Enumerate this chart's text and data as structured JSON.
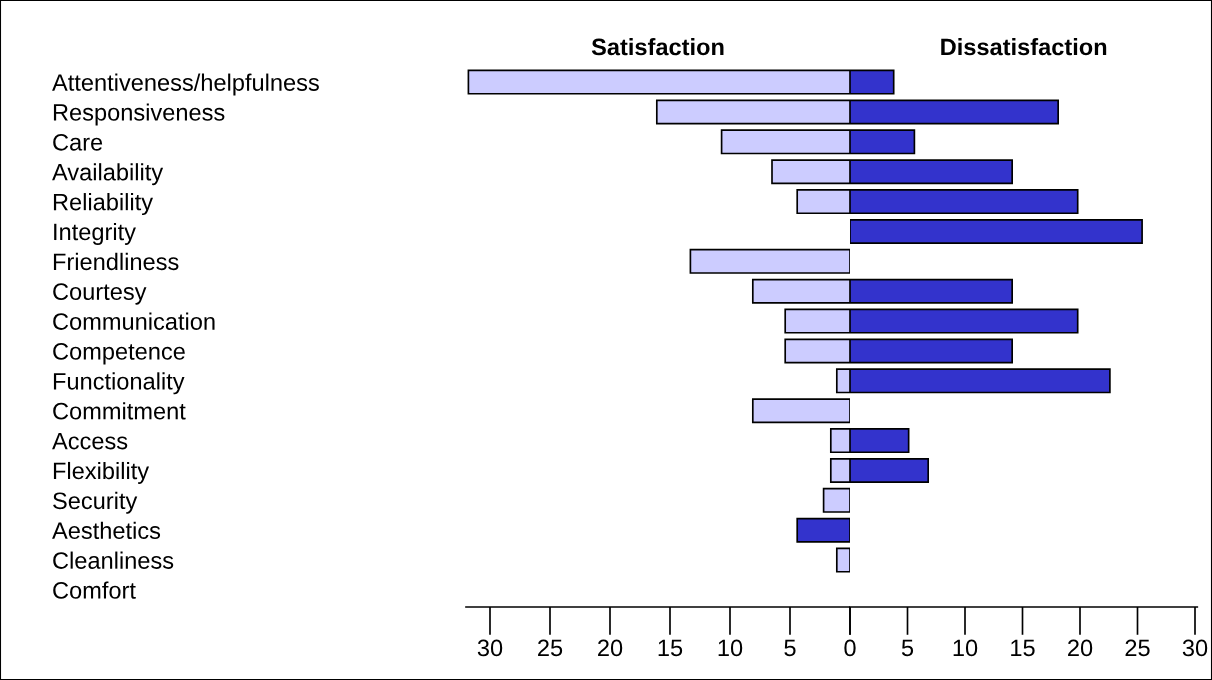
{
  "chart_data": [
    {
      "type": "bar",
      "orientation": "horizontal",
      "title": "Satisfaction",
      "categories": [
        "Attentiveness/helpfulness",
        "Responsiveness",
        "Care",
        "Availability",
        "Reliability",
        "Integrity",
        "Friendliness",
        "Courtesy",
        "Communication",
        "Competence",
        "Functionality",
        "Commitment",
        "Access",
        "Flexibility",
        "Security",
        "Aesthetics",
        "Cleanliness",
        "Comfort"
      ],
      "values": [
        31.8,
        16.1,
        10.7,
        6.5,
        4.4,
        null,
        13.3,
        8.1,
        5.4,
        5.4,
        1.1,
        8.1,
        1.6,
        1.6,
        2.2,
        4.4,
        1.1,
        null
      ],
      "colors": [
        "#ccccff",
        "#ccccff",
        "#ccccff",
        "#ccccff",
        "#ccccff",
        "#ccccff",
        "#ccccff",
        "#ccccff",
        "#ccccff",
        "#ccccff",
        "#ccccff",
        "#ccccff",
        "#ccccff",
        "#ccccff",
        "#ccccff",
        "#3333cc",
        "#ccccff",
        "#ccccff"
      ],
      "xlim": [
        32,
        0
      ],
      "xticks": [
        30,
        25,
        20,
        15,
        10,
        5,
        0
      ]
    },
    {
      "type": "bar",
      "orientation": "horizontal",
      "title": "Dissatisfaction",
      "tick_labels": "x",
      "categories": [
        null,
        null,
        null,
        null,
        null,
        null,
        null,
        null,
        null,
        null,
        null,
        null,
        null,
        null,
        null,
        null,
        null,
        null
      ],
      "values": [
        3.8,
        18.1,
        5.6,
        14.1,
        19.8,
        25.4,
        null,
        14.1,
        19.8,
        14.1,
        22.6,
        null,
        5.1,
        6.8,
        null,
        null,
        null,
        null
      ],
      "colors": [
        "#3333cc",
        "#3333cc",
        "#3333cc",
        "#3333cc",
        "#3333cc",
        "#3333cc",
        "#3333cc",
        "#3333cc",
        "#3333cc",
        "#3333cc",
        "#3333cc",
        "#3333cc",
        "#3333cc",
        "#3333cc",
        "#3333cc",
        "#3333cc",
        "#3333cc",
        "#3333cc"
      ],
      "xlim": [
        0,
        30.2
      ],
      "xticks": [
        {
          "value": 0,
          "label": null
        },
        5,
        10,
        15,
        20,
        25,
        30
      ]
    }
  ]
}
